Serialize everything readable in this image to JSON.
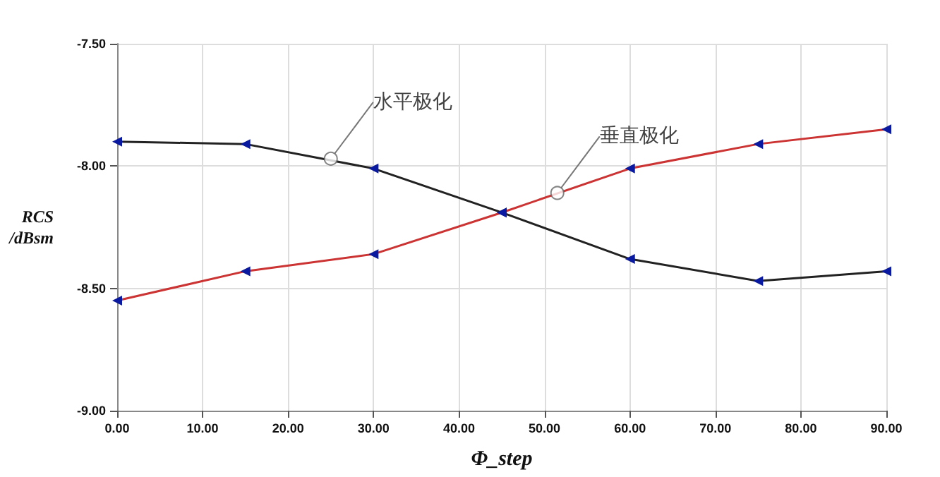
{
  "chart_data": {
    "type": "line",
    "xlabel": "Φ_step",
    "ylabel": "RCS\n/dBsm",
    "x": [
      0,
      15,
      30,
      45,
      60,
      75,
      90
    ],
    "series": [
      {
        "color": "#222222",
        "values": [
          -7.9,
          -7.91,
          -8.01,
          -8.19,
          -8.38,
          -8.47,
          -8.43
        ]
      },
      {
        "color": "#cc3333",
        "values": [
          -8.55,
          -8.43,
          -8.36,
          -8.19,
          -8.01,
          -7.91,
          -7.85
        ]
      }
    ],
    "annotations": [
      {
        "text": "水平极化",
        "x": 25,
        "y": -7.97
      },
      {
        "text": "垂直极化",
        "x": 51.5,
        "y": -8.11
      }
    ],
    "xlim": [
      0,
      90
    ],
    "xticks": [
      {
        "value": 0,
        "label": "0.00"
      },
      {
        "value": 10,
        "label": "10.00"
      },
      {
        "value": 20,
        "label": "20.00"
      },
      {
        "value": 30,
        "label": "30.00"
      },
      {
        "value": 40,
        "label": "40.00"
      },
      {
        "value": 50,
        "label": "50.00"
      },
      {
        "value": 60,
        "label": "60.00"
      },
      {
        "value": 70,
        "label": "70.00"
      },
      {
        "value": 80,
        "label": "80.00"
      },
      {
        "value": 90,
        "label": "90.00"
      }
    ],
    "ylim": [
      -9,
      -7.5
    ],
    "yticks": [
      {
        "value": -9,
        "label": "-9.00"
      },
      {
        "value": -8.5,
        "label": "-8.50"
      },
      {
        "value": -8,
        "label": "-8.00"
      },
      {
        "value": -7.5,
        "label": "-7.50"
      }
    ],
    "grid": true,
    "marker": "triangle",
    "line_style": "solid"
  }
}
